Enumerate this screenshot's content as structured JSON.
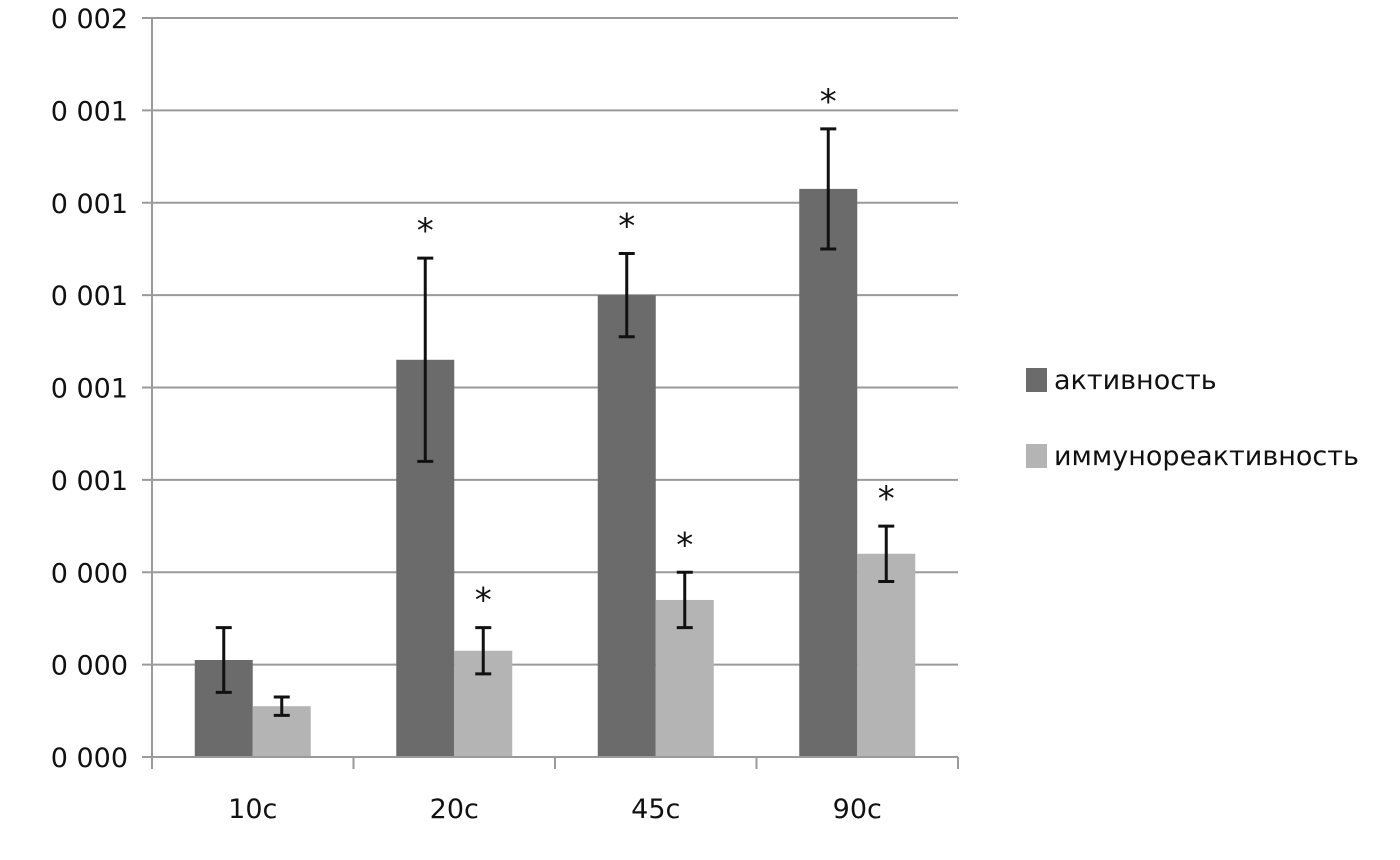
{
  "chart_data": {
    "type": "bar",
    "title": "",
    "xlabel": "",
    "ylabel": "",
    "categories": [
      "10с",
      "20с",
      "45с",
      "90с"
    ],
    "y_tick_labels": [
      "0 000",
      "0 000",
      "0 000",
      "0 001",
      "0 001",
      "0 001",
      "0 001",
      "0 001",
      "0 002"
    ],
    "ylim": [
      0,
      0.0016
    ],
    "grid": true,
    "legend_position": "right",
    "series": [
      {
        "name": "активность",
        "color": "#6b6b6b",
        "values": [
          0.00021,
          0.00086,
          0.001,
          0.00123
        ],
        "error": [
          7e-05,
          0.00022,
          9e-05,
          0.00013
        ],
        "significant": [
          false,
          true,
          true,
          true
        ]
      },
      {
        "name": "иммунореактивность",
        "color": "#b4b4b4",
        "values": [
          0.00011,
          0.00023,
          0.00034,
          0.00044
        ],
        "error": [
          2e-05,
          5e-05,
          6e-05,
          6e-05
        ],
        "significant": [
          false,
          true,
          true,
          true
        ]
      }
    ],
    "annotations": {
      "significance_marker": "*"
    }
  }
}
